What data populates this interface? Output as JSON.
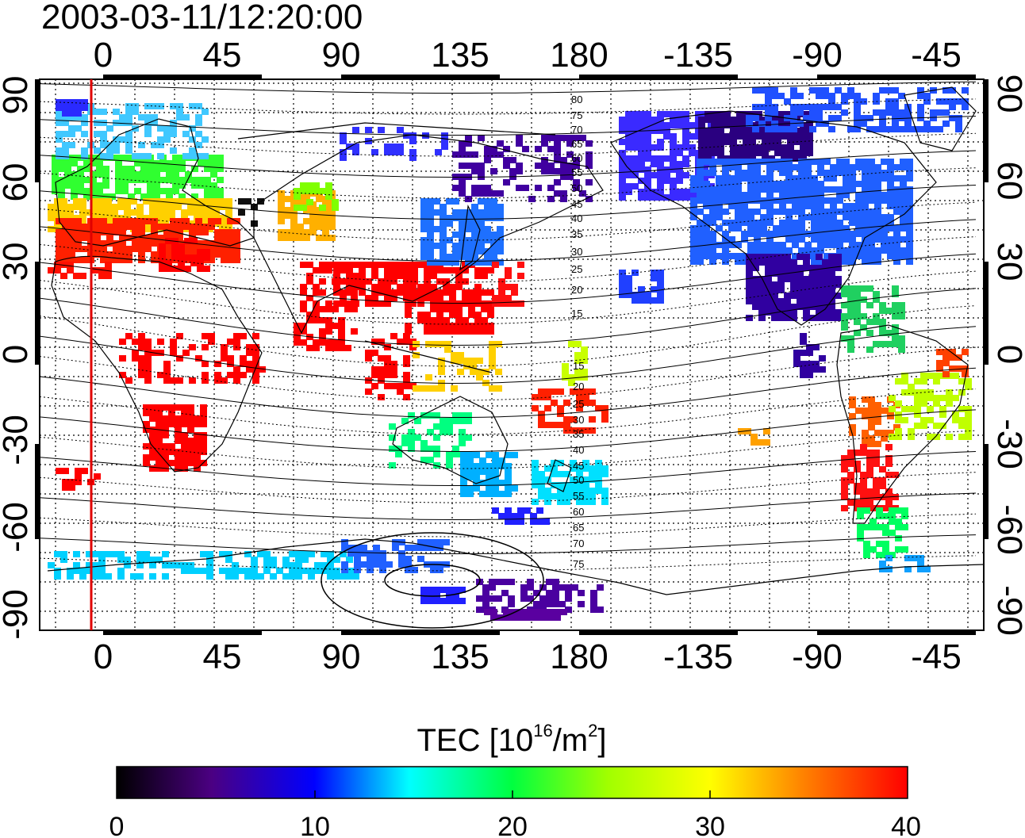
{
  "timestamp": "2003-03-11/12:20:00",
  "top_lon_ticks": [
    "0",
    "45",
    "90",
    "135",
    "180",
    "-135",
    "-90",
    "-45"
  ],
  "bottom_lon_ticks": [
    "0",
    "45",
    "90",
    "135",
    "180",
    "-135",
    "-90",
    "-45"
  ],
  "lat_ticks": [
    "90",
    "60",
    "30",
    "0",
    "-30",
    "-60",
    "-90"
  ],
  "contour_labels_north": [
    "80",
    "75",
    "70",
    "65",
    "60",
    "55",
    "50",
    "45",
    "40",
    "35",
    "30",
    "25",
    "20",
    "15"
  ],
  "contour_labels_south": [
    "15",
    "20",
    "25",
    "30",
    "35",
    "40",
    "45",
    "50",
    "55",
    "60",
    "65",
    "70",
    "75"
  ],
  "colorbar": {
    "title": "TEC  [10",
    "title_sup": "16",
    "title_tail": "/m",
    "title_sup2": "2",
    "title_end": "]",
    "tick_labels": [
      "0",
      "10",
      "20",
      "30",
      "40"
    ],
    "range": [
      0,
      40
    ]
  },
  "colors": {
    "marker_line": "#e00000",
    "frame": "#000000"
  }
}
